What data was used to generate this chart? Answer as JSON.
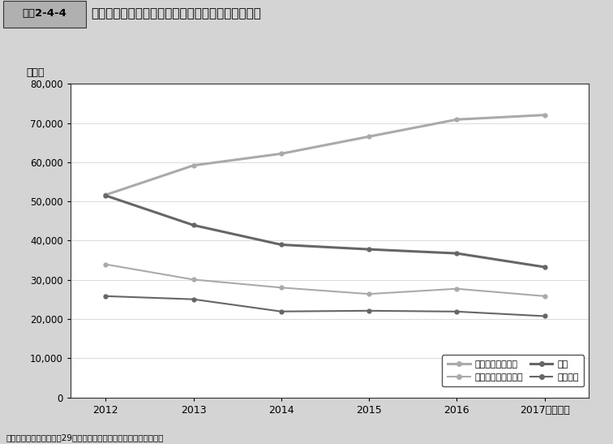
{
  "header_label": "図表2-4-4",
  "header_title": "民事上の個別労働紛争の主な相談内容の件数の推移",
  "ylabel": "（件）",
  "source": "資料：厚生労働省「平成29年度個別労働紛争解決制度の施行状況」",
  "years": [
    2012,
    2013,
    2014,
    2015,
    2016,
    2017
  ],
  "series": [
    {
      "name": "いじめ・嫌がらせ",
      "values": [
        51670,
        59197,
        62191,
        66566,
        70917,
        72067
      ],
      "color": "#aaaaaa",
      "linewidth": 2.2,
      "label_yoffset": 1600
    },
    {
      "name": "解雇",
      "values": [
        51515,
        43956,
        38966,
        37787,
        36760,
        33269
      ],
      "color": "#666666",
      "linewidth": 2.2,
      "label_yoffset": 1600
    },
    {
      "name": "労働条件の引き下げ",
      "values": [
        33955,
        30067,
        28015,
        26392,
        27723,
        25841
      ],
      "color": "#aaaaaa",
      "linewidth": 1.5,
      "label_yoffset": -2500
    },
    {
      "name": "退職勧奨",
      "values": [
        25838,
        25041,
        21928,
        22110,
        21901,
        20736
      ],
      "color": "#666666",
      "linewidth": 1.5,
      "label_yoffset": -2500
    }
  ],
  "ylim": [
    0,
    80000
  ],
  "yticks": [
    0,
    10000,
    20000,
    30000,
    40000,
    50000,
    60000,
    70000,
    80000
  ],
  "background_color": "#d4d4d4",
  "plot_bg_color": "#ffffff",
  "header_box_color": "#b0b0b0"
}
